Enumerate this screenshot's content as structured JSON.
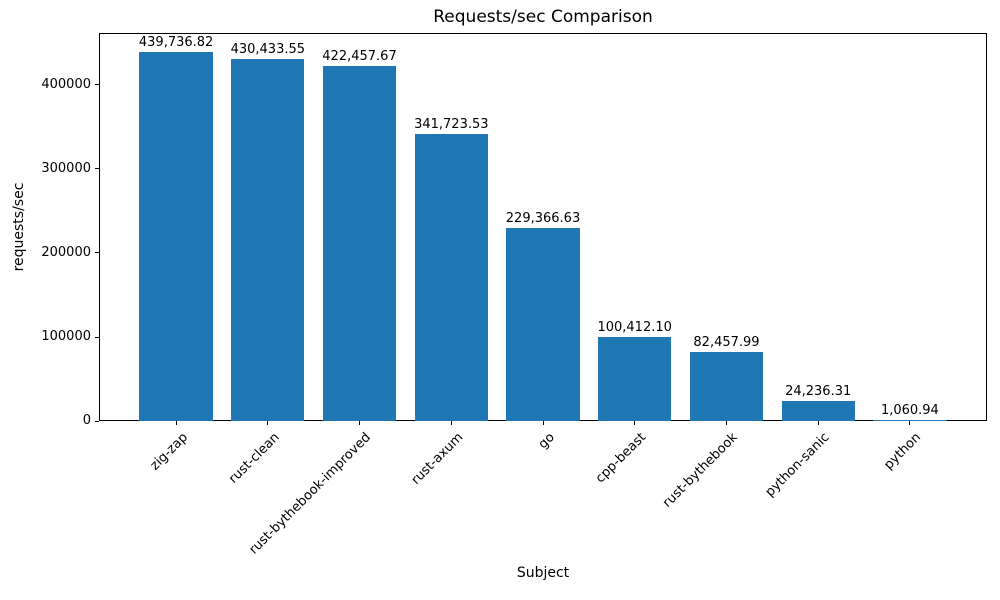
{
  "figure": {
    "background": "#ffffff",
    "text_color": "#000000"
  },
  "chart_data": {
    "type": "bar",
    "title": "Requests/sec Comparison",
    "xlabel": "Subject",
    "ylabel": "requests/sec",
    "categories": [
      "zig-zap",
      "rust-clean",
      "rust-bythebook-improved",
      "rust-axum",
      "go",
      "cpp-beast",
      "rust-bythebook",
      "python-sanic",
      "python"
    ],
    "values": [
      439736.82,
      430433.55,
      422457.67,
      341723.53,
      229366.63,
      100412.1,
      82457.99,
      24236.31,
      1060.94
    ],
    "bar_labels": [
      "439,736.82",
      "430,433.55",
      "422,457.67",
      "341,723.53",
      "229,366.63",
      "100,412.10",
      "82,457.99",
      "24,236.31",
      "1,060.94"
    ],
    "bar_color": "#1f77b4",
    "ylim": [
      0,
      461723
    ],
    "yticks": [
      0,
      100000,
      200000,
      300000,
      400000
    ],
    "ytick_labels": [
      "0",
      "100000",
      "200000",
      "300000",
      "400000"
    ],
    "xtick_rotation_deg": 45,
    "grid": false,
    "legend": "none"
  }
}
